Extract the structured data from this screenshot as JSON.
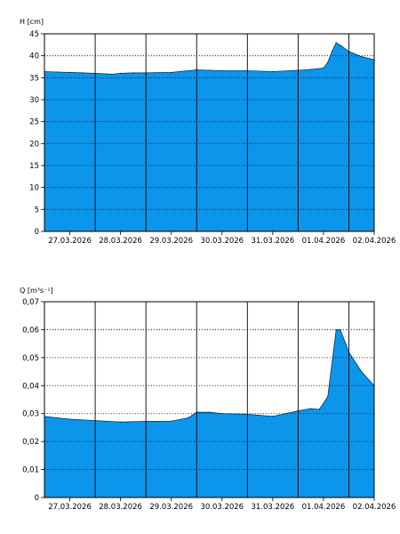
{
  "chart_data": [
    {
      "type": "area",
      "ylabel": "H [cm]",
      "ylim": [
        0,
        45
      ],
      "yticks": [
        0,
        5,
        10,
        15,
        20,
        25,
        30,
        35,
        40,
        45
      ],
      "ytick_labels": [
        "0",
        "5",
        "10",
        "15",
        "20",
        "25",
        "30",
        "35",
        "40",
        "45"
      ],
      "xlim": [
        "2026-03-27T00:00",
        "2026-04-02T12:00"
      ],
      "xticks": [
        "2026-03-27T12:00",
        "2026-03-28T12:00",
        "2026-03-29T12:00",
        "2026-03-30T12:00",
        "2026-03-31T12:00",
        "2026-04-01T12:00",
        "2026-04-02T12:00"
      ],
      "xtick_labels": [
        "27.03.2026",
        "28.03.2026",
        "29.03.2026",
        "30.03.2026",
        "31.03.2026",
        "01.04.2026",
        "02.04.2026"
      ],
      "vlines": [
        "2026-03-28T00:00",
        "2026-03-29T00:00",
        "2026-03-30T00:00",
        "2026-03-31T00:00",
        "2026-04-01T00:00",
        "2026-04-02T00:00"
      ],
      "grid": "horizontal dotted",
      "fill_color": "#0b96ec",
      "series": [
        {
          "x": [
            "2026-03-27T00:00",
            "2026-03-27T06:00",
            "2026-03-27T12:00",
            "2026-03-27T18:00",
            "2026-03-28T00:00",
            "2026-03-28T08:00",
            "2026-03-28T12:00",
            "2026-03-28T18:00",
            "2026-03-29T00:00",
            "2026-03-29T12:00",
            "2026-03-30T00:00",
            "2026-03-30T06:00",
            "2026-03-30T12:00",
            "2026-03-31T00:00",
            "2026-03-31T12:00",
            "2026-04-01T00:00",
            "2026-04-01T06:00",
            "2026-04-01T12:00",
            "2026-04-01T14:00",
            "2026-04-01T16:00",
            "2026-04-01T18:00",
            "2026-04-01T20:00",
            "2026-04-02T00:00",
            "2026-04-02T06:00",
            "2026-04-02T12:00"
          ],
          "values": [
            36.4,
            36.3,
            36.2,
            36.1,
            36.0,
            35.8,
            36.0,
            36.1,
            36.1,
            36.2,
            36.8,
            36.7,
            36.6,
            36.6,
            36.4,
            36.7,
            36.9,
            37.2,
            38.5,
            41.0,
            43.0,
            42.4,
            41.0,
            39.8,
            39.1
          ]
        }
      ]
    },
    {
      "type": "area",
      "ylabel": "Q [m³s⁻¹]",
      "ylim": [
        0,
        0.07
      ],
      "yticks": [
        0,
        0.01,
        0.02,
        0.03,
        0.04,
        0.05,
        0.06,
        0.07
      ],
      "ytick_labels": [
        "0",
        "0,01",
        "0,02",
        "0,03",
        "0,04",
        "0,05",
        "0,06",
        "0,07"
      ],
      "xlim": [
        "2026-03-27T00:00",
        "2026-04-02T12:00"
      ],
      "xticks": [
        "2026-03-27T12:00",
        "2026-03-28T12:00",
        "2026-03-29T12:00",
        "2026-03-30T12:00",
        "2026-03-31T12:00",
        "2026-04-01T12:00",
        "2026-04-02T12:00"
      ],
      "xtick_labels": [
        "27.03.2026",
        "28.03.2026",
        "29.03.2026",
        "30.03.2026",
        "31.03.2026",
        "01.04.2026",
        "02.04.2026"
      ],
      "vlines": [
        "2026-03-28T00:00",
        "2026-03-29T00:00",
        "2026-03-30T00:00",
        "2026-03-31T00:00",
        "2026-04-01T00:00",
        "2026-04-02T00:00"
      ],
      "grid": "horizontal dotted",
      "fill_color": "#0b96ec",
      "series": [
        {
          "x": [
            "2026-03-27T00:00",
            "2026-03-27T06:00",
            "2026-03-27T12:00",
            "2026-03-28T00:00",
            "2026-03-28T12:00",
            "2026-03-29T00:00",
            "2026-03-29T12:00",
            "2026-03-29T20:00",
            "2026-03-30T00:00",
            "2026-03-30T06:00",
            "2026-03-30T12:00",
            "2026-03-31T00:00",
            "2026-03-31T12:00",
            "2026-04-01T00:00",
            "2026-04-01T06:00",
            "2026-04-01T10:00",
            "2026-04-01T14:00",
            "2026-04-01T18:00",
            "2026-04-01T20:00",
            "2026-04-02T00:00",
            "2026-04-02T06:00",
            "2026-04-02T12:00"
          ],
          "values": [
            0.029,
            0.0285,
            0.028,
            0.0275,
            0.027,
            0.0272,
            0.0273,
            0.0285,
            0.0305,
            0.0305,
            0.03,
            0.0298,
            0.029,
            0.031,
            0.0318,
            0.0315,
            0.036,
            0.06,
            0.06,
            0.052,
            0.045,
            0.04
          ]
        }
      ]
    }
  ]
}
